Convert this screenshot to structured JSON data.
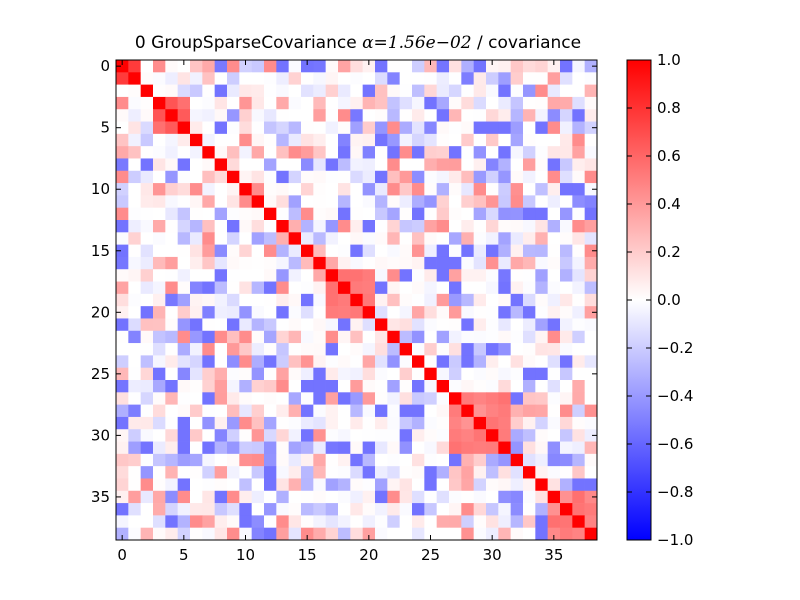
{
  "title": {
    "prefix": "0 GroupSparseCovariance ",
    "alpha": "α=1.56e−02",
    "suffix": " / covariance"
  },
  "colors": {
    "colormap": "bwr",
    "low": "#0000ff",
    "mid": "#ffffff",
    "high": "#ff0000"
  },
  "chart_data": {
    "type": "heatmap",
    "size": 39,
    "x_ticks": [
      0,
      5,
      10,
      15,
      20,
      25,
      30,
      35
    ],
    "y_ticks": [
      0,
      5,
      10,
      15,
      20,
      25,
      30,
      35
    ],
    "vlim": [
      -1.0,
      1.0
    ],
    "colorbar_ticks": [
      "1.0",
      "0.8",
      "0.6",
      "0.4",
      "0.2",
      "0.0",
      "−0.2",
      "−0.4",
      "−0.6",
      "−0.8",
      "−1.0"
    ],
    "grid": false,
    "diagonal_value": 1.0,
    "blocks": [
      {
        "range": [
          0,
          1
        ],
        "value": 0.8
      },
      {
        "range": [
          3,
          5
        ],
        "value": 0.6
      },
      {
        "range": [
          17,
          20
        ],
        "value": 0.55
      },
      {
        "range": [
          27,
          31
        ],
        "value": 0.5
      },
      {
        "range": [
          35,
          38
        ],
        "value": 0.5
      }
    ],
    "noise_range": [
      -0.5,
      0.45
    ]
  }
}
